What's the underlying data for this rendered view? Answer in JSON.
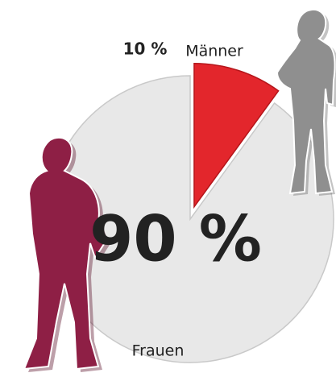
{
  "chart_data": {
    "type": "pie",
    "categories": [
      "Männer",
      "Frauen"
    ],
    "values": [
      10,
      90
    ],
    "value_labels": [
      "10 %",
      "90 %"
    ],
    "colors": [
      "#e3262c",
      "#e8e8e8"
    ]
  }
}
